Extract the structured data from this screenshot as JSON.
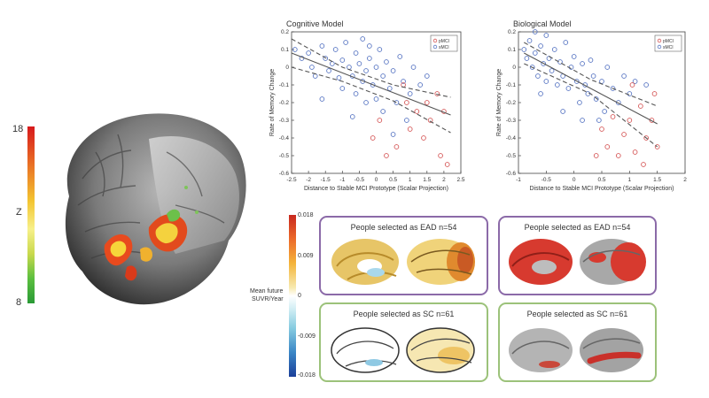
{
  "figure": {
    "left_colorbar": {
      "max": "18",
      "mid": "Z",
      "min": "8"
    },
    "right_colorbar": {
      "ticks": [
        "0.018",
        "0.009",
        "0",
        "-0.009",
        "-0.018"
      ],
      "label_lines": [
        "Mean future",
        "SUVR/Year"
      ]
    },
    "panels": {
      "top_left": {
        "title": "People selected as EAD n=54"
      },
      "top_right": {
        "title": "People selected as EAD n=54"
      },
      "bottom_left": {
        "title": "People selected as SC n=61"
      },
      "bottom_right": {
        "title": "People selected as SC n=61"
      }
    },
    "colors": {
      "purple_frame": "#8b6aa8",
      "green_frame": "#9cc27a"
    }
  },
  "chart_data": [
    {
      "type": "scatter",
      "title": "Cognitive Model",
      "xlabel": "Distance to Stable MCI Prototype (Scalar Projection)",
      "ylabel": "Rate of Memory Change",
      "xlim": [
        -2.5,
        2.5
      ],
      "ylim": [
        -0.6,
        0.2
      ],
      "xticks": [
        "-2.5",
        "-2",
        "-1.5",
        "-1",
        "-0.5",
        "0",
        "0.5",
        "1",
        "1.5",
        "2",
        "2.5"
      ],
      "yticks": [
        "0.2",
        "0.1",
        "0",
        "-0.1",
        "-0.2",
        "-0.3",
        "-0.4",
        "-0.5",
        "-0.6"
      ],
      "legend": [
        "pMCI",
        "sMCI"
      ],
      "legend_position": "top-right",
      "fit_line": [
        [
          -2.5,
          0.08
        ],
        [
          2.2,
          -0.27
        ]
      ],
      "ci_upper": [
        [
          -2.5,
          0.16
        ],
        [
          -1,
          0.0
        ],
        [
          0.5,
          -0.1
        ],
        [
          2.2,
          -0.17
        ]
      ],
      "ci_lower": [
        [
          -2.5,
          0.0
        ],
        [
          -1,
          -0.08
        ],
        [
          0.5,
          -0.19
        ],
        [
          2.2,
          -0.37
        ]
      ],
      "series": [
        {
          "name": "sMCI",
          "color": "#5b78c4",
          "points": [
            [
              -2.4,
              0.1
            ],
            [
              -2.2,
              0.05
            ],
            [
              -2.0,
              0.08
            ],
            [
              -1.9,
              0.0
            ],
            [
              -1.8,
              -0.05
            ],
            [
              -1.6,
              0.12
            ],
            [
              -1.5,
              0.05
            ],
            [
              -1.4,
              -0.02
            ],
            [
              -1.3,
              0.02
            ],
            [
              -1.2,
              0.1
            ],
            [
              -1.1,
              -0.06
            ],
            [
              -1.0,
              0.04
            ],
            [
              -1.0,
              -0.12
            ],
            [
              -0.9,
              0.14
            ],
            [
              -0.8,
              0.0
            ],
            [
              -0.7,
              -0.05
            ],
            [
              -0.6,
              0.08
            ],
            [
              -0.6,
              -0.15
            ],
            [
              -0.5,
              0.02
            ],
            [
              -0.4,
              -0.08
            ],
            [
              -0.4,
              0.16
            ],
            [
              -0.3,
              -0.02
            ],
            [
              -0.3,
              -0.2
            ],
            [
              -0.2,
              0.05
            ],
            [
              -0.1,
              -0.1
            ],
            [
              0.0,
              0.0
            ],
            [
              0.0,
              -0.18
            ],
            [
              0.1,
              0.1
            ],
            [
              0.2,
              -0.05
            ],
            [
              0.2,
              -0.25
            ],
            [
              0.3,
              0.03
            ],
            [
              0.4,
              -0.12
            ],
            [
              0.5,
              -0.02
            ],
            [
              0.6,
              -0.2
            ],
            [
              0.7,
              0.06
            ],
            [
              0.8,
              -0.08
            ],
            [
              0.9,
              -0.3
            ],
            [
              1.0,
              -0.15
            ],
            [
              1.1,
              0.0
            ],
            [
              1.3,
              -0.1
            ],
            [
              -0.7,
              -0.28
            ],
            [
              -1.6,
              -0.18
            ],
            [
              0.5,
              -0.38
            ],
            [
              -0.2,
              0.12
            ],
            [
              1.5,
              -0.05
            ]
          ]
        },
        {
          "name": "pMCI",
          "color": "#d65a5a",
          "points": [
            [
              0.3,
              -0.5
            ],
            [
              0.6,
              -0.45
            ],
            [
              0.9,
              -0.2
            ],
            [
              1.0,
              -0.35
            ],
            [
              1.2,
              -0.25
            ],
            [
              1.4,
              -0.4
            ],
            [
              1.6,
              -0.3
            ],
            [
              1.8,
              -0.15
            ],
            [
              1.9,
              -0.5
            ],
            [
              2.1,
              -0.55
            ],
            [
              0.1,
              -0.3
            ],
            [
              1.5,
              -0.2
            ],
            [
              2.0,
              -0.25
            ],
            [
              0.8,
              -0.1
            ],
            [
              -0.1,
              -0.4
            ]
          ]
        }
      ]
    },
    {
      "type": "scatter",
      "title": "Biological Model",
      "xlabel": "Distance to Stable MCI Prototype (Scalar Projection)",
      "ylabel": "Rate of Memory Change",
      "xlim": [
        -1,
        2
      ],
      "ylim": [
        -0.6,
        0.2
      ],
      "xticks": [
        "-1",
        "-0.5",
        "0",
        "0.5",
        "1",
        "1.5",
        "2"
      ],
      "yticks": [
        "0.2",
        "0.1",
        "0",
        "-0.1",
        "-0.2",
        "-0.3",
        "-0.4",
        "-0.5",
        "-0.6"
      ],
      "legend": [
        "pMCI",
        "sMCI"
      ],
      "legend_position": "top-right",
      "fit_line": [
        [
          -0.9,
          0.08
        ],
        [
          1.5,
          -0.32
        ]
      ],
      "ci_upper": [
        [
          -0.9,
          0.14
        ],
        [
          0.3,
          -0.07
        ],
        [
          1.5,
          -0.22
        ]
      ],
      "ci_lower": [
        [
          -0.9,
          0.02
        ],
        [
          0.3,
          -0.15
        ],
        [
          1.5,
          -0.45
        ]
      ],
      "series": [
        {
          "name": "sMCI",
          "color": "#5b78c4",
          "points": [
            [
              -0.9,
              0.1
            ],
            [
              -0.85,
              0.05
            ],
            [
              -0.8,
              0.15
            ],
            [
              -0.75,
              0.0
            ],
            [
              -0.7,
              0.08
            ],
            [
              -0.65,
              -0.05
            ],
            [
              -0.6,
              0.12
            ],
            [
              -0.55,
              0.02
            ],
            [
              -0.5,
              -0.08
            ],
            [
              -0.5,
              0.18
            ],
            [
              -0.45,
              0.05
            ],
            [
              -0.4,
              -0.02
            ],
            [
              -0.35,
              0.1
            ],
            [
              -0.3,
              -0.1
            ],
            [
              -0.25,
              0.03
            ],
            [
              -0.2,
              -0.05
            ],
            [
              -0.15,
              0.14
            ],
            [
              -0.1,
              -0.12
            ],
            [
              -0.05,
              0.0
            ],
            [
              0.0,
              0.06
            ],
            [
              0.05,
              -0.08
            ],
            [
              0.1,
              -0.2
            ],
            [
              0.15,
              0.02
            ],
            [
              0.2,
              -0.1
            ],
            [
              0.25,
              -0.15
            ],
            [
              0.3,
              0.04
            ],
            [
              0.35,
              -0.05
            ],
            [
              0.4,
              -0.18
            ],
            [
              0.5,
              -0.08
            ],
            [
              0.55,
              -0.25
            ],
            [
              0.6,
              0.0
            ],
            [
              0.7,
              -0.12
            ],
            [
              0.8,
              -0.2
            ],
            [
              0.9,
              -0.05
            ],
            [
              1.0,
              -0.15
            ],
            [
              1.1,
              -0.08
            ],
            [
              -0.6,
              -0.15
            ],
            [
              -0.2,
              -0.25
            ],
            [
              0.45,
              -0.3
            ],
            [
              1.3,
              -0.1
            ],
            [
              -0.7,
              0.2
            ],
            [
              0.15,
              -0.3
            ]
          ]
        },
        {
          "name": "pMCI",
          "color": "#d65a5a",
          "points": [
            [
              0.5,
              -0.35
            ],
            [
              0.6,
              -0.45
            ],
            [
              0.7,
              -0.28
            ],
            [
              0.8,
              -0.5
            ],
            [
              0.9,
              -0.38
            ],
            [
              1.0,
              -0.3
            ],
            [
              1.1,
              -0.48
            ],
            [
              1.2,
              -0.22
            ],
            [
              1.25,
              -0.55
            ],
            [
              1.3,
              -0.4
            ],
            [
              1.4,
              -0.3
            ],
            [
              1.5,
              -0.45
            ],
            [
              0.4,
              -0.5
            ],
            [
              1.05,
              -0.1
            ],
            [
              1.45,
              -0.15
            ]
          ]
        }
      ]
    }
  ]
}
